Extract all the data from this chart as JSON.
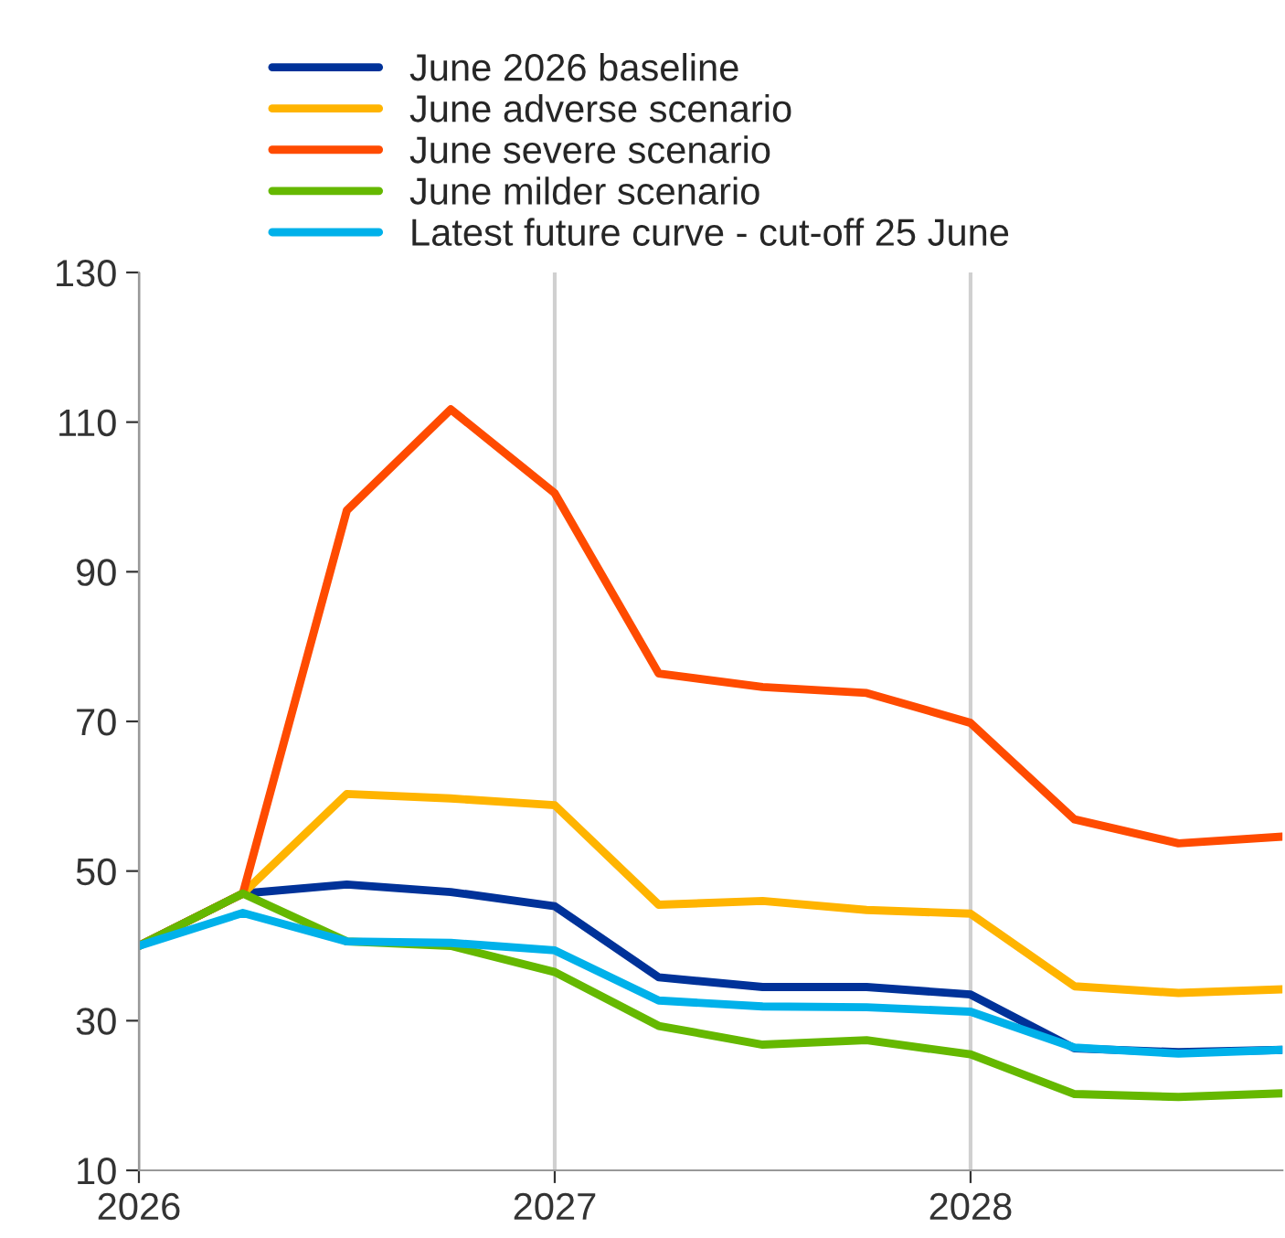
{
  "chart_data": {
    "type": "line",
    "x": [
      2026.0,
      2026.25,
      2026.5,
      2026.75,
      2027.0,
      2027.25,
      2027.5,
      2027.75,
      2028.0,
      2028.25,
      2028.5,
      2028.75
    ],
    "series": [
      {
        "name": "June 2026 baseline",
        "color": "#003299",
        "values": [
          40,
          47,
          48.2,
          47.2,
          45.3,
          35.8,
          34.5,
          34.5,
          33.5,
          26.3,
          25.8,
          26.1
        ]
      },
      {
        "name": "June adverse scenario",
        "color": "#ffb400",
        "values": [
          40,
          47,
          60.3,
          59.7,
          58.8,
          45.5,
          46,
          44.8,
          44.3,
          34.6,
          33.7,
          34.2
        ]
      },
      {
        "name": "June severe scenario",
        "color": "#ff4b00",
        "values": [
          40,
          47,
          98.2,
          111.7,
          100.5,
          76.4,
          74.6,
          73.8,
          69.8,
          56.9,
          53.7,
          54.6
        ]
      },
      {
        "name": "June milder scenario",
        "color": "#65b800",
        "values": [
          40,
          47,
          40.6,
          40.0,
          36.5,
          29.3,
          26.8,
          27.4,
          25.5,
          20.2,
          19.8,
          20.3
        ]
      },
      {
        "name": "Latest future curve - cut-off 25 June",
        "color": "#00b1ea",
        "values": [
          40,
          44.4,
          40.6,
          40.4,
          39.4,
          32.7,
          31.9,
          31.8,
          31.2,
          26.4,
          25.6,
          26.1
        ]
      }
    ],
    "xlim": [
      2026,
      2028.75
    ],
    "xticks": [
      2026,
      2027,
      2028
    ],
    "ylim": [
      10,
      130
    ],
    "yticks": [
      10,
      30,
      50,
      70,
      90,
      110,
      130
    ],
    "grid": "x",
    "legend": "top",
    "marker": "none",
    "line_style": "solid"
  }
}
